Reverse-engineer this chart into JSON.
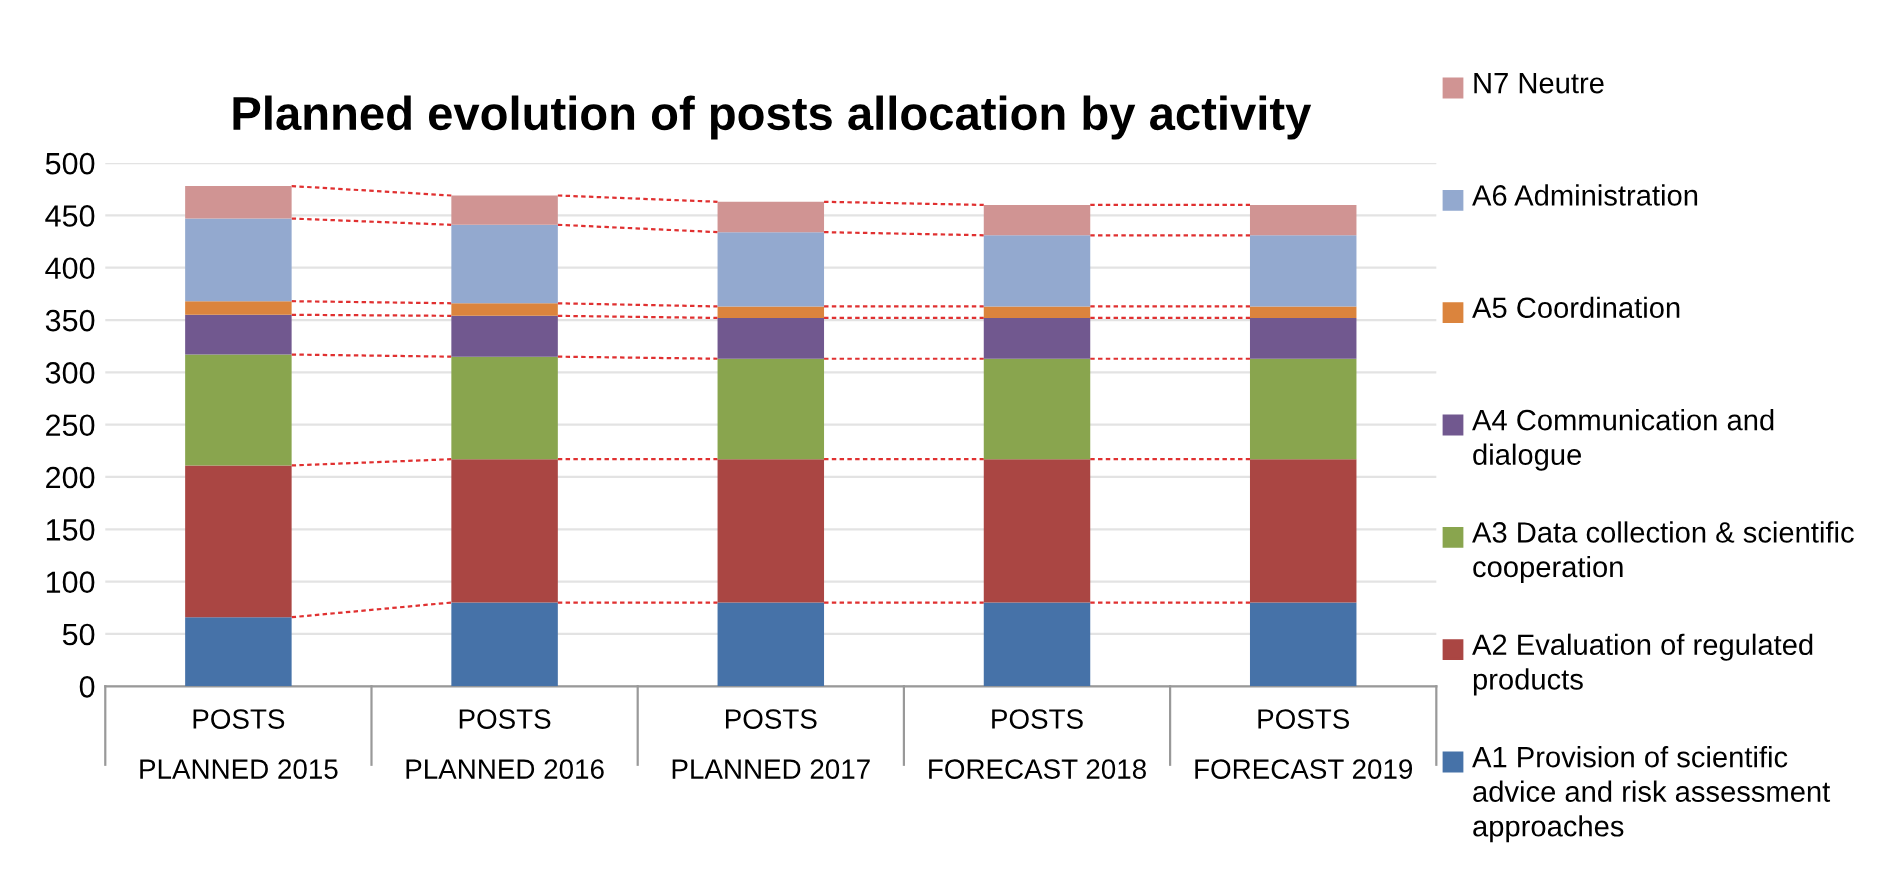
{
  "chart_data": {
    "type": "bar",
    "stacked": true,
    "title": "Planned evolution of posts allocation by activity",
    "categories": [
      "POSTS\nPLANNED 2015",
      "POSTS\nPLANNED 2016",
      "POSTS\nPLANNED 2017",
      "POSTS\nFORECAST 2018",
      "POSTS\nFORECAST 2019"
    ],
    "series": [
      {
        "name": "A1 Provision of scientific advice and risk assessment approaches",
        "color": "#4672a8",
        "values": [
          66,
          80,
          80,
          80,
          80
        ]
      },
      {
        "name": "A2 Evaluation of regulated products",
        "color": "#aa4643",
        "values": [
          145,
          137,
          137,
          137,
          137
        ]
      },
      {
        "name": "A3 Data collection & scientific cooperation",
        "color": "#89a54e",
        "values": [
          106,
          98,
          96,
          96,
          96
        ]
      },
      {
        "name": "A4 Communication and dialogue",
        "color": "#71588f",
        "values": [
          38,
          39,
          39,
          39,
          39
        ]
      },
      {
        "name": "A5 Coordination",
        "color": "#db843d",
        "values": [
          13,
          12,
          11,
          11,
          11
        ]
      },
      {
        "name": "A6 Administration",
        "color": "#93a9cf",
        "values": [
          79,
          75,
          71,
          68,
          68
        ]
      },
      {
        "name": "N7 Neutre",
        "color": "#d09493",
        "values": [
          31,
          28,
          29,
          29,
          29
        ]
      }
    ],
    "ylim": [
      0,
      500
    ],
    "yticks": [
      0,
      50,
      100,
      150,
      200,
      250,
      300,
      350,
      400,
      450,
      500
    ],
    "grid": "y",
    "legend": "right"
  }
}
